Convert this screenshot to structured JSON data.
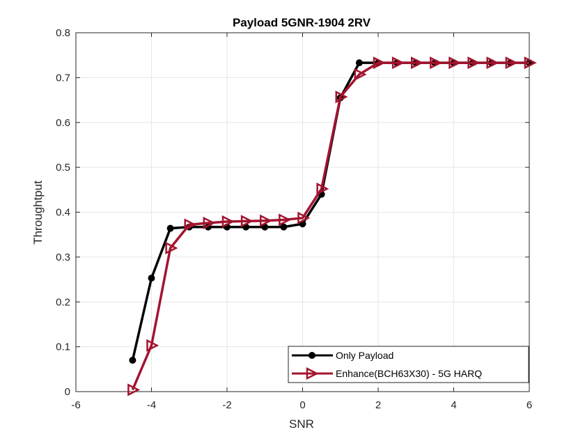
{
  "chart_data": {
    "type": "line",
    "title": "Payload 5GNR-1904 2RV",
    "xlabel": "SNR",
    "ylabel": "Throughtput",
    "xlim": [
      -6,
      6
    ],
    "ylim": [
      0,
      0.8
    ],
    "xticks": [
      -6,
      -4,
      -2,
      0,
      2,
      4,
      6
    ],
    "yticks": [
      0,
      0.1,
      0.2,
      0.3,
      0.4,
      0.5,
      0.6,
      0.7,
      0.8
    ],
    "grid": true,
    "legend_position": "bottom-right",
    "series": [
      {
        "name": "Only Payload",
        "color": "#000000",
        "marker": "circle",
        "x": [
          -4.5,
          -4,
          -3.5,
          -3,
          -2.5,
          -2,
          -1.5,
          -1,
          -0.5,
          0,
          0.5,
          1,
          1.5,
          2,
          2.5,
          3,
          3.5,
          4,
          4.5,
          5,
          5.5,
          6
        ],
        "y": [
          0.07,
          0.253,
          0.364,
          0.367,
          0.367,
          0.367,
          0.367,
          0.367,
          0.367,
          0.374,
          0.44,
          0.655,
          0.733,
          0.733,
          0.733,
          0.733,
          0.733,
          0.733,
          0.733,
          0.733,
          0.733,
          0.733
        ]
      },
      {
        "name": "Enhance(BCH63X30) - 5G HARQ",
        "color": "#a2142f",
        "marker": "triangle-right",
        "x": [
          -4.5,
          -4,
          -3.5,
          -3,
          -2.5,
          -2,
          -1.5,
          -1,
          -0.5,
          0,
          0.5,
          1,
          1.5,
          2,
          2.5,
          3,
          3.5,
          4,
          4.5,
          5,
          5.5,
          6
        ],
        "y": [
          0.004,
          0.103,
          0.32,
          0.372,
          0.376,
          0.379,
          0.38,
          0.381,
          0.383,
          0.387,
          0.452,
          0.657,
          0.707,
          0.733,
          0.733,
          0.733,
          0.733,
          0.733,
          0.733,
          0.733,
          0.733,
          0.733
        ]
      }
    ]
  }
}
